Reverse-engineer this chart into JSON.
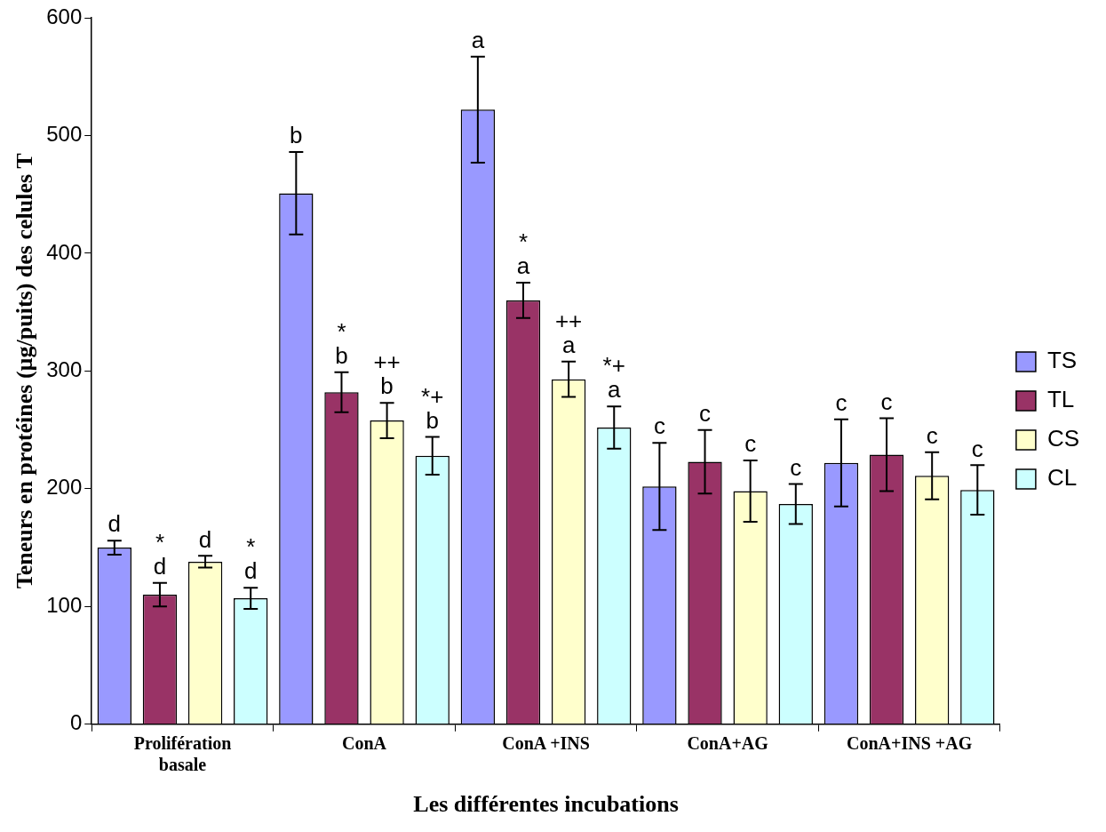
{
  "chart_data": {
    "type": "bar",
    "xlabel": "Les différentes incubations",
    "ylabel": "Teneurs en protéines (µg/puits) des celules T",
    "categories": [
      "Prolifération basale",
      "ConA",
      "ConA +INS",
      "ConA+AG",
      "ConA+INS +AG"
    ],
    "series": [
      {
        "name": "TS",
        "color": "#9999ff",
        "values": [
          150,
          451,
          522,
          202,
          222
        ],
        "errors": [
          6,
          35,
          45,
          37,
          37
        ],
        "value_labels": [
          "d",
          "b",
          "a",
          "c",
          "c"
        ]
      },
      {
        "name": "TL",
        "color": "#993366",
        "values": [
          110,
          282,
          360,
          223,
          229
        ],
        "errors": [
          10,
          17,
          15,
          27,
          31
        ],
        "value_labels": [
          "*\nd",
          "*\nb",
          "*\na",
          "c",
          "c"
        ]
      },
      {
        "name": "CS",
        "color": "#ffffcc",
        "values": [
          138,
          258,
          293,
          198,
          211
        ],
        "errors": [
          5,
          15,
          15,
          26,
          20
        ],
        "value_labels": [
          "d",
          "++\nb",
          "++\na",
          "c",
          "c"
        ]
      },
      {
        "name": "CL",
        "color": "#ccffff",
        "values": [
          107,
          228,
          252,
          187,
          199
        ],
        "errors": [
          9,
          16,
          18,
          17,
          21
        ],
        "value_labels": [
          "*\nd",
          "*+\nb",
          "*+\na",
          "c",
          "c"
        ]
      }
    ],
    "ylim": [
      0,
      600
    ],
    "yticks": [
      0,
      100,
      200,
      300,
      400,
      500,
      600
    ],
    "grid": false,
    "legend": "right"
  }
}
